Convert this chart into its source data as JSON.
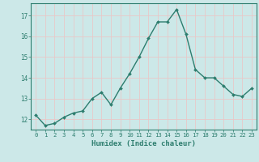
{
  "x": [
    0,
    1,
    2,
    3,
    4,
    5,
    6,
    7,
    8,
    9,
    10,
    11,
    12,
    13,
    14,
    15,
    16,
    17,
    18,
    19,
    20,
    21,
    22,
    23
  ],
  "y": [
    12.2,
    11.7,
    11.8,
    12.1,
    12.3,
    12.4,
    13.0,
    13.3,
    12.7,
    13.5,
    14.2,
    15.0,
    15.9,
    16.7,
    16.7,
    17.3,
    16.1,
    14.4,
    14.0,
    14.0,
    13.6,
    13.2,
    13.1,
    13.5
  ],
  "xlabel": "Humidex (Indice chaleur)",
  "bg_color": "#cce8e8",
  "line_color": "#2d7d6e",
  "marker_color": "#2d7d6e",
  "grid_major_color": "#ffffff",
  "grid_minor_color": "#d8e8e8",
  "xlim": [
    -0.5,
    23.5
  ],
  "ylim": [
    11.5,
    17.6
  ],
  "yticks": [
    12,
    13,
    14,
    15,
    16,
    17
  ],
  "xticks": [
    0,
    1,
    2,
    3,
    4,
    5,
    6,
    7,
    8,
    9,
    10,
    11,
    12,
    13,
    14,
    15,
    16,
    17,
    18,
    19,
    20,
    21,
    22,
    23
  ],
  "tick_color": "#2d7d6e",
  "label_color": "#2d7d6e",
  "spine_color": "#2d7d6e"
}
